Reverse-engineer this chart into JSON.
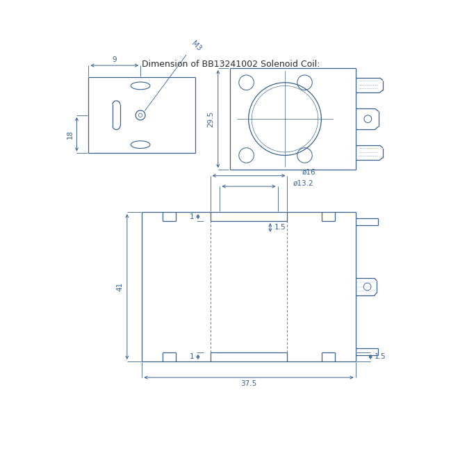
{
  "title": "Dimension of BB13241002 Solenoid Coil:",
  "bg_color": "#ffffff",
  "line_color": "#3a6090",
  "dim_color": "#3a6090",
  "text_color": "#3a6090",
  "dark_color": "#2a2a2a",
  "dim_18": "18",
  "dim_9": "9",
  "dim_M3": "M3",
  "dim_29_5": "29.5",
  "dim_phi16": "ø16",
  "dim_phi13_2": "ø13.2",
  "dim_41": "41",
  "dim_37_5": "37.5",
  "dim_1a": "1",
  "dim_1b": "1",
  "dim_1_5a": "1.5",
  "dim_1_5b": "1.5"
}
